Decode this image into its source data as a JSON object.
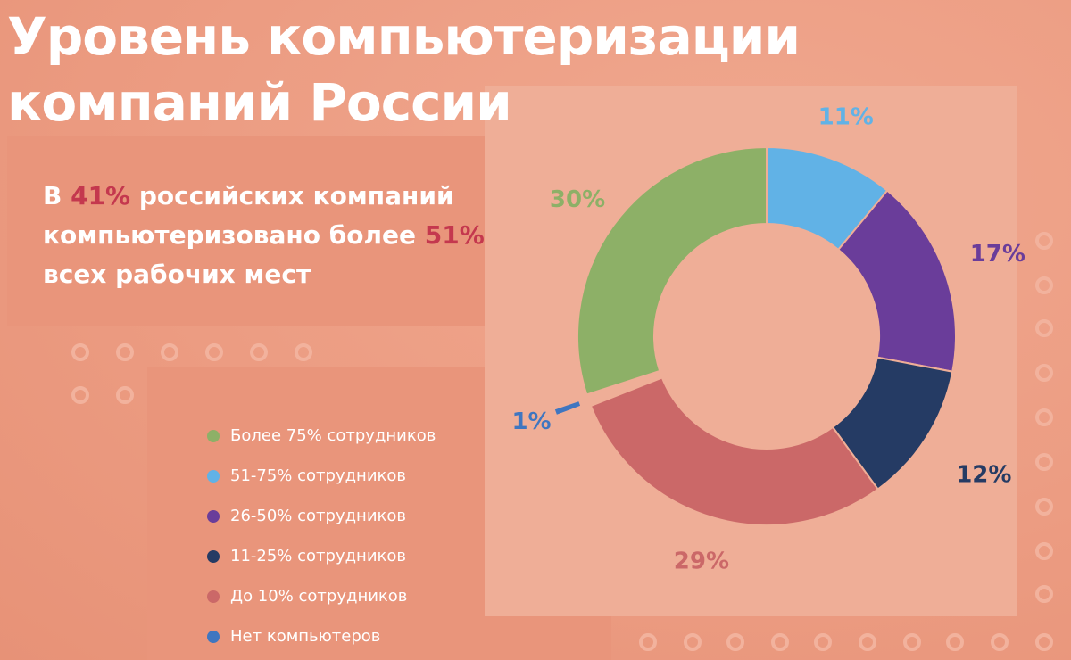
{
  "title": {
    "line1": "Уровень компьютеризации",
    "line2": "компаний России"
  },
  "info": {
    "part1": "В ",
    "highlight1": "41%",
    "part2": " российских компаний компьютеризовано более ",
    "highlight2": "51%",
    "part3": " всех рабочих мест"
  },
  "colors": {
    "accent": "#c4384e",
    "green": "#8db067",
    "light_blue": "#61b2e6",
    "purple": "#6a3d9a",
    "navy": "#253b64",
    "rose": "#cb6868",
    "blue": "#3f76c0"
  },
  "chart_data": {
    "type": "pie",
    "subtype": "donut",
    "title": "Уровень компьютеризации компаний России",
    "unit": "%",
    "start_angle_deg": 0,
    "direction": "clockwise",
    "slices": [
      {
        "name": "51-75% сотрудников",
        "value": 11,
        "label": "11%",
        "color": "#61b2e6"
      },
      {
        "name": "26-50% сотрудников",
        "value": 17,
        "label": "17%",
        "color": "#6a3d9a"
      },
      {
        "name": "11-25% сотрудников",
        "value": 12,
        "label": "12%",
        "color": "#253b64"
      },
      {
        "name": "До 10% сотрудников",
        "value": 29,
        "label": "29%",
        "color": "#cb6868"
      },
      {
        "name": "Нет компьютеров",
        "value": 1,
        "label": "1%",
        "color": "#3f76c0",
        "exploded": true
      },
      {
        "name": "Более 75% сотрудников",
        "value": 30,
        "label": "30%",
        "color": "#8db067"
      }
    ],
    "legend": [
      {
        "label": "Более 75% сотрудников",
        "color": "#8db067"
      },
      {
        "label": "51-75% сотрудников",
        "color": "#61b2e6"
      },
      {
        "label": "26-50% сотрудников",
        "color": "#6a3d9a"
      },
      {
        "label": "11-25% сотрудников",
        "color": "#253b64"
      },
      {
        "label": "До 10% сотрудников",
        "color": "#cb6868"
      },
      {
        "label": "Нет компьютеров",
        "color": "#3f76c0"
      }
    ],
    "legend_position": "left"
  }
}
